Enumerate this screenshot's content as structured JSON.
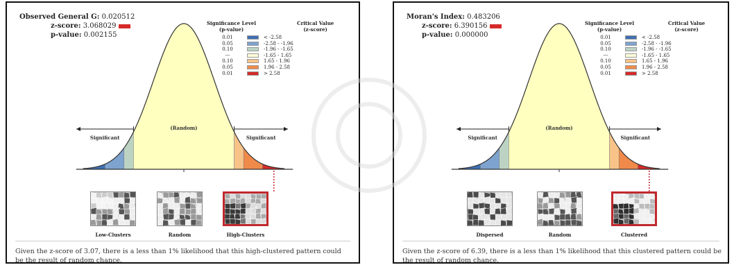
{
  "left": {
    "stat1_label": "Observed General G:",
    "stat1_value": "0.020512",
    "zscore_label": "z-score:",
    "zscore_value": "3.068029",
    "pvalue_label": "p-value:",
    "pvalue_value": "0.002155",
    "legend_sig_header": "Significance Level\n(p-value)",
    "legend_crit_header": "Critical Value\n(z-score)",
    "legend_rows": [
      {
        "p": "0.01",
        "c": "< -2.58",
        "color": "#3e6fb3"
      },
      {
        "p": "0.05",
        "c": "-2.58 - -1.96",
        "color": "#7ea3cf"
      },
      {
        "p": "0.10",
        "c": "-1.96 - -1.65",
        "color": "#bcd3c4"
      },
      {
        "p": "---",
        "c": "-1.65 - 1.65",
        "color": "#ffffd9"
      },
      {
        "p": "0.10",
        "c": "1.65 - 1.96",
        "color": "#f7c388"
      },
      {
        "p": "0.05",
        "c": "1.96 - 2.58",
        "color": "#f08a4b"
      },
      {
        "p": "0.01",
        "c": "> 2.58",
        "color": "#d62a2a"
      }
    ],
    "label_sig_left": "Significant",
    "label_random": "(Random)",
    "label_sig_right": "Significant",
    "map_labels": [
      "Low-Clusters",
      "Random",
      "High-Clusters"
    ],
    "caption": "Given the z-score of 3.07, there is a less than 1% likelihood that this high-clustered pattern could be the result of random chance."
  },
  "right": {
    "stat1_label": "Moran's Index:",
    "stat1_value": "0.483206",
    "zscore_label": "z-score:",
    "zscore_value": "6.390156",
    "pvalue_label": "p-value:",
    "pvalue_value": "0.000000",
    "legend_sig_header": "Significance Level\n(p-value)",
    "legend_crit_header": "Critical Value\n(z-score)",
    "legend_rows": [
      {
        "p": "0.01",
        "c": "< -2.58",
        "color": "#3e6fb3"
      },
      {
        "p": "0.05",
        "c": "-2.58 - -1.96",
        "color": "#7ea3cf"
      },
      {
        "p": "0.10",
        "c": "-1.96 - -1.65",
        "color": "#bcd3c4"
      },
      {
        "p": "---",
        "c": "-1.65 - 1.65",
        "color": "#ffffd9"
      },
      {
        "p": "0.10",
        "c": "1.65 - 1.96",
        "color": "#f7c388"
      },
      {
        "p": "0.05",
        "c": "1.96 - 2.58",
        "color": "#f08a4b"
      },
      {
        "p": "0.01",
        "c": "> 2.58",
        "color": "#d62a2a"
      }
    ],
    "label_sig_left": "Significant",
    "label_random": "(Random)",
    "label_sig_right": "Significant",
    "map_labels": [
      "Dispersed",
      "Random",
      "Clustered"
    ],
    "caption": "Given the z-score of 6.39, there is a less than 1% likelihood that this clustered pattern could be the result of random chance."
  },
  "colors": {
    "curve_fill": "#ffffc0",
    "blue_dark": "#3e6fb3",
    "blue_light": "#7ea3cf",
    "green_light": "#bcd3c4",
    "orange_light": "#f7c388",
    "orange": "#f08a4b",
    "red": "#d62a2a",
    "highlight_border": "#c0282d"
  }
}
